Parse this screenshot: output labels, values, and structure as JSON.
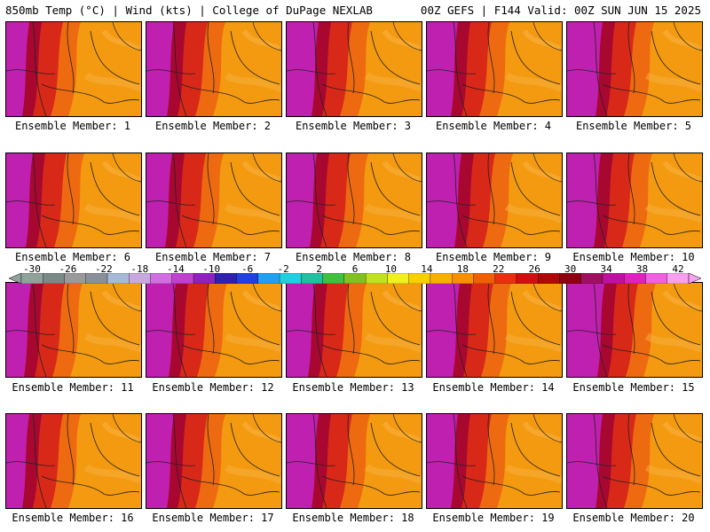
{
  "header": {
    "left": "850mb Temp (°C) | Wind (kts) | College of DuPage NEXLAB",
    "right": "00Z GEFS | F144 Valid: 00Z SUN JUN 15 2025"
  },
  "panels": [
    {
      "caption": "Ensemble Member: 1"
    },
    {
      "caption": "Ensemble Member: 2"
    },
    {
      "caption": "Ensemble Member: 3"
    },
    {
      "caption": "Ensemble Member: 4"
    },
    {
      "caption": "Ensemble Member: 5"
    },
    {
      "caption": "Ensemble Member: 6"
    },
    {
      "caption": "Ensemble Member: 7"
    },
    {
      "caption": "Ensemble Member: 8"
    },
    {
      "caption": "Ensemble Member: 9"
    },
    {
      "caption": "Ensemble Member: 10"
    },
    {
      "caption": "Ensemble Member: 11"
    },
    {
      "caption": "Ensemble Member: 12"
    },
    {
      "caption": "Ensemble Member: 13"
    },
    {
      "caption": "Ensemble Member: 14"
    },
    {
      "caption": "Ensemble Member: 15"
    },
    {
      "caption": "Ensemble Member: 16"
    },
    {
      "caption": "Ensemble Member: 17"
    },
    {
      "caption": "Ensemble Member: 18"
    },
    {
      "caption": "Ensemble Member: 19"
    },
    {
      "caption": "Ensemble Member: 20"
    }
  ],
  "colorbar": {
    "tick_labels": [
      "-30",
      "-26",
      "-22",
      "-18",
      "-14",
      "-10",
      "-6",
      "-2",
      "2",
      "6",
      "10",
      "14",
      "18",
      "22",
      "26",
      "30",
      "34",
      "38",
      "42"
    ],
    "colors": [
      "#8fa39a",
      "#7a8a86",
      "#9a9a9a",
      "#8a8f9c",
      "#a8b8d8",
      "#c8a8e0",
      "#d070e0",
      "#c040d0",
      "#9020c0",
      "#3020b0",
      "#2040e0",
      "#20a0f0",
      "#20d0e0",
      "#20c0a0",
      "#40c040",
      "#80c020",
      "#c0e020",
      "#f0f020",
      "#f8d000",
      "#f8b000",
      "#f89000",
      "#f06000",
      "#e83010",
      "#d01010",
      "#b00808",
      "#900010",
      "#a01060",
      "#c010a0",
      "#e020c0",
      "#f060e0",
      "#f8a0f0"
    ]
  },
  "colors": {
    "hot": "#b00020",
    "warm": "#f09000",
    "extreme": "#d020c0"
  }
}
